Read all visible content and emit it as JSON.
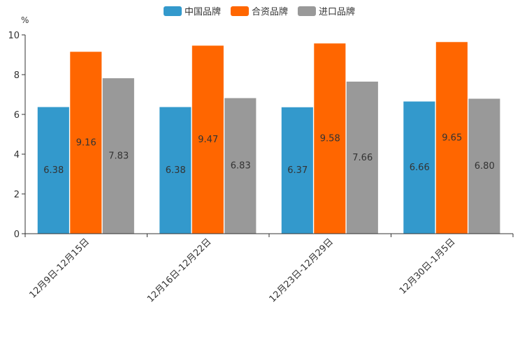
{
  "chart_data": {
    "type": "bar",
    "title": "",
    "xlabel": "",
    "ylabel": "%",
    "ylim": [
      0,
      10
    ],
    "yticks": [
      0,
      2,
      4,
      6,
      8,
      10
    ],
    "categories": [
      "12月9日-12月15日",
      "12月16日-12月22日",
      "12月23日-12月29日",
      "12月30日-1月5日"
    ],
    "series": [
      {
        "name": "中国品牌",
        "color": "#3399CC",
        "values": [
          6.38,
          6.38,
          6.37,
          6.66
        ]
      },
      {
        "name": "合资品牌",
        "color": "#FF6600",
        "values": [
          9.16,
          9.47,
          9.58,
          9.65
        ]
      },
      {
        "name": "进口品牌",
        "color": "#999999",
        "values": [
          7.83,
          6.83,
          7.66,
          6.8
        ]
      }
    ],
    "value_labels": [
      [
        "6.38",
        "6.38",
        "6.37",
        "6.66"
      ],
      [
        "9.16",
        "9.47",
        "9.58",
        "9.65"
      ],
      [
        "7.83",
        "6.83",
        "7.66",
        "6.80"
      ]
    ],
    "legend_position": "top-center",
    "grid": false
  }
}
